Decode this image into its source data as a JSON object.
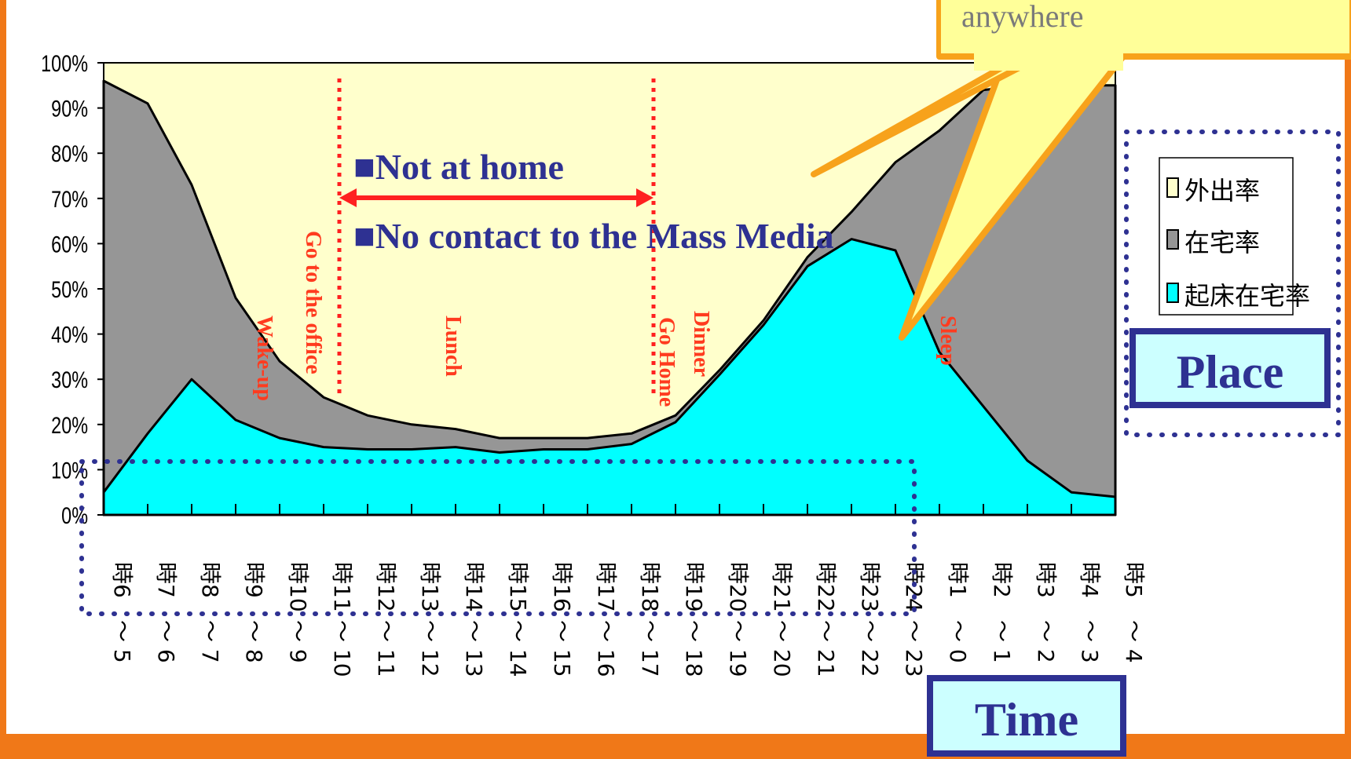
{
  "chart_data": {
    "type": "area",
    "categories": [
      "5～6時",
      "6～7時",
      "7～8時",
      "8～9時",
      "9～10時",
      "10～11時",
      "11～12時",
      "12～13時",
      "13～14時",
      "14～15時",
      "15～16時",
      "16～17時",
      "17～18時",
      "18～19時",
      "19～20時",
      "20～21時",
      "21～22時",
      "22～23時",
      "23～24時",
      "0～1時",
      "1～2時",
      "2～3時",
      "3～4時",
      "4～5時"
    ],
    "tick_start": [
      "5",
      "6",
      "7",
      "8",
      "9",
      "10",
      "11",
      "12",
      "13",
      "14",
      "15",
      "16",
      "17",
      "18",
      "19",
      "20",
      "21",
      "22",
      "23",
      "0",
      "1",
      "2",
      "3",
      "4"
    ],
    "tick_end": [
      "6",
      "7",
      "8",
      "9",
      "10",
      "11",
      "12",
      "13",
      "14",
      "15",
      "16",
      "17",
      "18",
      "19",
      "20",
      "21",
      "22",
      "23",
      "24",
      "1",
      "2",
      "3",
      "4",
      "5"
    ],
    "tick_sep": "～",
    "tick_suffix": "時",
    "ylim": [
      0,
      100
    ],
    "yticks": [
      "0%",
      "10%",
      "20%",
      "30%",
      "40%",
      "50%",
      "60%",
      "70%",
      "80%",
      "90%",
      "100%"
    ],
    "series": [
      {
        "name": "外出率",
        "color": "#ffffcc",
        "values": [
          100,
          100,
          100,
          100,
          100,
          100,
          100,
          100,
          100,
          100,
          100,
          100,
          100,
          100,
          100,
          100,
          100,
          100,
          100,
          100,
          100,
          100,
          100,
          100
        ]
      },
      {
        "name": "在宅率",
        "color": "#969696",
        "values": [
          96,
          91,
          73,
          48,
          34,
          26,
          22,
          20,
          19,
          17,
          17,
          17,
          18,
          22,
          32,
          43,
          57,
          67,
          78,
          85,
          94,
          95,
          95,
          95
        ]
      },
      {
        "name": "起床在宅率",
        "color": "#00ffff",
        "values": [
          5,
          18,
          30,
          21,
          17,
          15,
          14.5,
          14.5,
          15,
          13.8,
          14.5,
          14.5,
          15.7,
          20.5,
          31,
          42,
          55,
          61,
          58.5,
          36,
          24,
          12,
          5,
          4
        ]
      }
    ],
    "events": [
      "Wake-up",
      "Go to the office",
      "Lunch",
      "Go Home",
      "Dinner",
      "Sleep"
    ],
    "annotations": {
      "not_at_home": "■Not at home",
      "no_contact": "■No contact to the Mass Media"
    }
  },
  "callout": {
    "text": "anywhere"
  },
  "labels": {
    "place": "Place",
    "time": "Time"
  },
  "colors": {
    "background": "#f07818",
    "accent": "#2e3192",
    "event": "#ff3b1f",
    "callout_fill": "#ffff99",
    "callout_border": "#f7a21b"
  }
}
